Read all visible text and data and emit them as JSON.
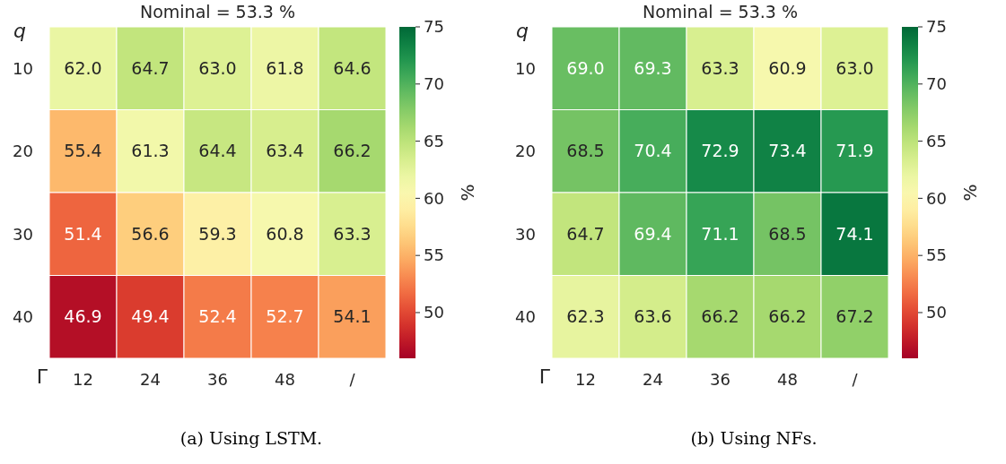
{
  "chart_data": [
    {
      "type": "heatmap",
      "title": "Nominal = 53.3 %",
      "xlabel": "Γ",
      "ylabel": "q",
      "clabel": "%",
      "categories": [
        "12",
        "24",
        "36",
        "48",
        "/"
      ],
      "y_categories": [
        "10",
        "20",
        "30",
        "40"
      ],
      "cells": [
        [
          62.0,
          64.7,
          63.0,
          61.8,
          64.6
        ],
        [
          55.4,
          61.3,
          64.4,
          63.4,
          66.2
        ],
        [
          51.4,
          56.6,
          59.3,
          60.8,
          63.3
        ],
        [
          46.9,
          49.4,
          52.4,
          52.7,
          54.1
        ]
      ],
      "cell_labels": [
        [
          "62.0",
          "64.7",
          "63.0",
          "61.8",
          "64.6"
        ],
        [
          "55.4",
          "61.3",
          "64.4",
          "63.4",
          "66.2"
        ],
        [
          "51.4",
          "56.6",
          "59.3",
          "60.8",
          "63.3"
        ],
        [
          "46.9",
          "49.4",
          "52.4",
          "52.7",
          "54.1"
        ]
      ],
      "data_labels": true,
      "clim": [
        46,
        75
      ],
      "cticks": [
        50,
        55,
        60,
        65,
        70,
        75
      ],
      "annotations": [
        "(a) Using LSTM."
      ]
    },
    {
      "type": "heatmap",
      "title": "Nominal = 53.3 %",
      "xlabel": "Γ",
      "ylabel": "q",
      "clabel": "%",
      "categories": [
        "12",
        "24",
        "36",
        "48",
        "/"
      ],
      "y_categories": [
        "10",
        "20",
        "30",
        "40"
      ],
      "cells": [
        [
          69.0,
          69.3,
          63.3,
          60.9,
          63.0
        ],
        [
          68.5,
          70.4,
          72.9,
          73.4,
          71.9
        ],
        [
          64.7,
          69.4,
          71.1,
          68.5,
          74.1
        ],
        [
          62.3,
          63.6,
          66.2,
          66.2,
          67.2
        ]
      ],
      "cell_labels": [
        [
          "69.0",
          "69.3",
          "63.3",
          "60.9",
          "63.0"
        ],
        [
          "68.5",
          "70.4",
          "72.9",
          "73.4",
          "71.9"
        ],
        [
          "64.7",
          "69.4",
          "71.1",
          "68.5",
          "74.1"
        ],
        [
          "62.3",
          "63.6",
          "66.2",
          "66.2",
          "67.2"
        ]
      ],
      "data_labels": true,
      "clim": [
        46,
        75
      ],
      "cticks": [
        50,
        55,
        60,
        65,
        70,
        75
      ],
      "annotations": [
        "(b) Using NFs."
      ]
    }
  ]
}
